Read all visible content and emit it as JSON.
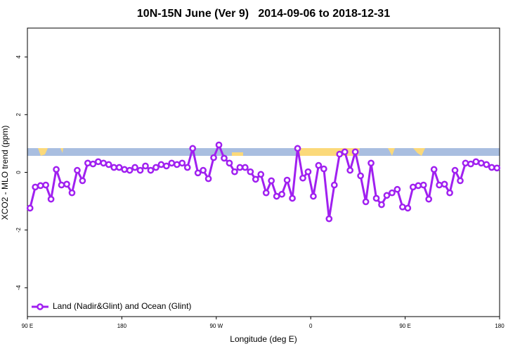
{
  "chart_data": {
    "type": "line",
    "title": "10N-15N June (Ver 9)   2014-09-06 to 2018-12-31",
    "x_label": "Longitude (deg E)",
    "y_label": "XCO2 - MLO trend (ppm)",
    "xlim": [
      90,
      540
    ],
    "ylim": [
      -5,
      5
    ],
    "xticks": [
      {
        "value": 90,
        "label": "90 E"
      },
      180,
      {
        "value": 270,
        "label": "90 W"
      },
      {
        "value": 360,
        "label": "0"
      },
      {
        "value": 450,
        "label": "90 E"
      },
      {
        "value": 540,
        "label": "180"
      }
    ],
    "yticks": [
      -4,
      -2,
      0,
      2,
      4
    ],
    "legend": "bottom-left",
    "x": [
      92.5,
      97.5,
      102.5,
      107.5,
      112.5,
      117.5,
      122.5,
      127.5,
      132.5,
      137.5,
      142.5,
      147.5,
      152.5,
      157.5,
      162.5,
      167.5,
      172.5,
      177.5,
      182.5,
      187.5,
      192.5,
      197.5,
      202.5,
      207.5,
      212.5,
      217.5,
      222.5,
      227.5,
      232.5,
      237.5,
      242.5,
      247.5,
      252.5,
      257.5,
      262.5,
      267.5,
      272.5,
      277.5,
      282.5,
      287.5,
      292.5,
      297.5,
      302.5,
      307.5,
      312.5,
      317.5,
      322.5,
      327.5,
      332.5,
      337.5,
      342.5,
      347.5,
      352.5,
      357.5,
      362.5,
      367.5,
      372.5,
      377.5,
      382.5,
      387.5,
      392.5,
      397.5,
      402.5,
      407.5,
      412.5,
      417.5,
      422.5,
      427.5,
      432.5,
      437.5,
      442.5,
      447.5,
      452.5,
      457.5,
      462.5,
      467.5,
      472.5,
      477.5,
      482.5,
      487.5,
      492.5,
      497.5,
      502.5,
      507.5,
      512.5,
      517.5,
      522.5,
      527.5,
      532.5,
      537.5
    ],
    "series": [
      {
        "name": "Land (Nadir&Glint) and Ocean (Glint)",
        "color": "#a020f0",
        "values": [
          -1.24,
          -0.51,
          -0.46,
          -0.44,
          -0.93,
          0.1,
          -0.44,
          -0.41,
          -0.71,
          0.07,
          -0.29,
          0.32,
          0.29,
          0.37,
          0.32,
          0.27,
          0.17,
          0.17,
          0.1,
          0.07,
          0.17,
          0.07,
          0.22,
          0.07,
          0.17,
          0.27,
          0.22,
          0.32,
          0.27,
          0.32,
          0.17,
          0.83,
          -0.02,
          0.07,
          -0.22,
          0.51,
          0.95,
          0.49,
          0.32,
          0.02,
          0.17,
          0.17,
          0.02,
          -0.24,
          -0.07,
          -0.71,
          -0.29,
          -0.83,
          -0.76,
          -0.27,
          -0.9,
          0.83,
          -0.2,
          0.02,
          -0.83,
          0.24,
          0.12,
          -1.61,
          -0.44,
          0.63,
          0.71,
          0.07,
          0.71,
          -0.12,
          -1.02,
          0.32,
          -0.9,
          -1.12,
          -0.8,
          -0.71,
          -0.59,
          -1.2,
          -1.24,
          -0.51,
          -0.46,
          -0.44,
          -0.93,
          0.1,
          -0.44,
          -0.41,
          -0.71,
          0.07,
          -0.29,
          0.32,
          0.29,
          0.37,
          0.32,
          0.27,
          0.17,
          0.15
        ]
      }
    ]
  }
}
